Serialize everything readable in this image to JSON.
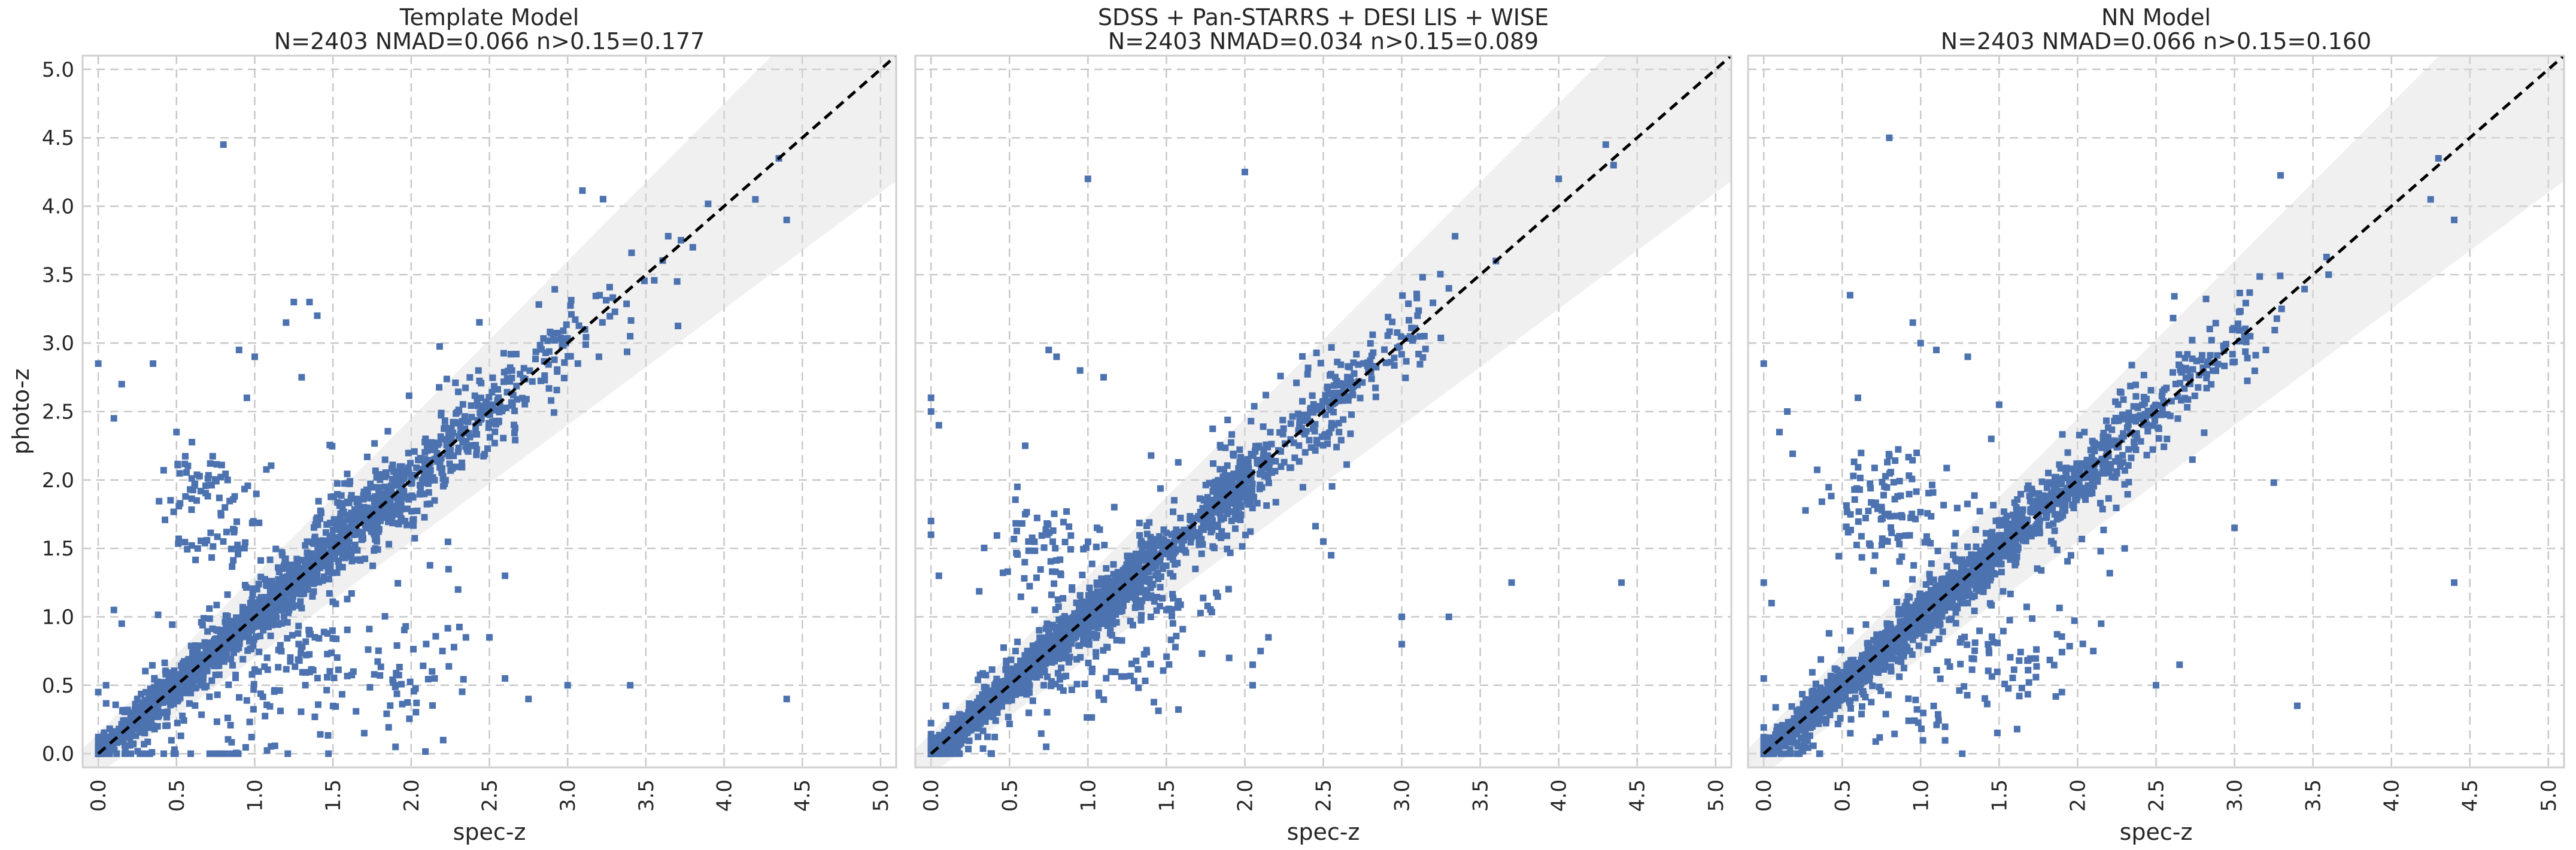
{
  "chart_data": [
    {
      "type": "scatter",
      "title": "Template Model",
      "subtitle": "N=2403 NMAD=0.066 n>0.15=0.177",
      "xlabel": "spec-z",
      "ylabel": "photo-z",
      "xlim": [
        -0.1,
        5.1
      ],
      "ylim": [
        -0.1,
        5.1
      ],
      "xticks": [
        "0.0",
        "0.5",
        "1.0",
        "1.5",
        "2.0",
        "2.5",
        "3.0",
        "3.5",
        "4.0",
        "4.5",
        "5.0"
      ],
      "yticks": [
        "0.0",
        "0.5",
        "1.0",
        "1.5",
        "2.0",
        "2.5",
        "3.0",
        "3.5",
        "4.0",
        "4.5",
        "5.0"
      ],
      "show_yticks": true,
      "grid": true,
      "n_points": 2403,
      "outlier_threshold": 0.15,
      "marker": "square",
      "marker_color": "#4c72b0",
      "band_color": "#dcdcdc",
      "line_color": "#000000",
      "outliers": [
        {
          "x": 0.8,
          "y": 4.45
        },
        {
          "x": 4.4,
          "y": 0.4
        },
        {
          "x": 3.4,
          "y": 0.5
        },
        {
          "x": 3.0,
          "y": 0.5
        },
        {
          "x": 0.0,
          "y": 2.85
        },
        {
          "x": 0.35,
          "y": 2.85
        },
        {
          "x": 1.25,
          "y": 3.3
        },
        {
          "x": 1.35,
          "y": 3.3
        },
        {
          "x": 1.4,
          "y": 3.2
        },
        {
          "x": 1.2,
          "y": 3.15
        },
        {
          "x": 0.15,
          "y": 2.7
        },
        {
          "x": 0.1,
          "y": 2.45
        },
        {
          "x": 0.9,
          "y": 2.95
        },
        {
          "x": 1.0,
          "y": 2.9
        },
        {
          "x": 0.95,
          "y": 2.6
        },
        {
          "x": 1.3,
          "y": 2.75
        },
        {
          "x": 0.5,
          "y": 2.35
        },
        {
          "x": 0.1,
          "y": 1.05
        },
        {
          "x": 0.15,
          "y": 0.95
        },
        {
          "x": 0.05,
          "y": 0.5
        },
        {
          "x": 0.0,
          "y": 0.45
        },
        {
          "x": 2.2,
          "y": 0.75
        },
        {
          "x": 2.35,
          "y": 0.85
        },
        {
          "x": 2.5,
          "y": 0.85
        },
        {
          "x": 2.15,
          "y": 0.55
        },
        {
          "x": 2.6,
          "y": 0.55
        },
        {
          "x": 2.75,
          "y": 0.4
        },
        {
          "x": 1.7,
          "y": 0.15
        },
        {
          "x": 1.9,
          "y": 0.05
        },
        {
          "x": 3.2,
          "y": 2.9
        },
        {
          "x": 4.2,
          "y": 4.05
        },
        {
          "x": 4.4,
          "y": 3.9
        },
        {
          "x": 4.35,
          "y": 4.35
        },
        {
          "x": 3.8,
          "y": 3.7
        },
        {
          "x": 3.7,
          "y": 3.45
        },
        {
          "x": 3.4,
          "y": 3.05
        },
        {
          "x": 2.6,
          "y": 1.3
        },
        {
          "x": 2.3,
          "y": 1.2
        },
        {
          "x": 1.9,
          "y": 0.5
        }
      ],
      "clusters": [
        {
          "x": 0.35,
          "y": 0.35,
          "spread": 0.15,
          "count": 520,
          "kind": "diagonal"
        },
        {
          "x": 0.85,
          "y": 0.85,
          "spread": 0.2,
          "count": 600,
          "kind": "diagonal"
        },
        {
          "x": 1.35,
          "y": 1.3,
          "spread": 0.2,
          "count": 420,
          "kind": "diagonal"
        },
        {
          "x": 2.05,
          "y": 2.0,
          "spread": 0.25,
          "count": 380,
          "kind": "diagonal"
        },
        {
          "x": 2.75,
          "y": 2.75,
          "spread": 0.25,
          "count": 120,
          "kind": "diagonal"
        },
        {
          "x": 1.7,
          "y": 1.75,
          "spread": 0.15,
          "count": 120,
          "kind": "blob"
        },
        {
          "x": 0.7,
          "y": 2.0,
          "spread": 0.18,
          "count": 55,
          "kind": "blob"
        },
        {
          "x": 0.75,
          "y": 1.55,
          "spread": 0.15,
          "count": 35,
          "kind": "blob"
        },
        {
          "x": 1.1,
          "y": 0.35,
          "spread": 0.35,
          "count": 60,
          "kind": "blob"
        },
        {
          "x": 1.85,
          "y": 0.6,
          "spread": 0.25,
          "count": 55,
          "kind": "blob"
        },
        {
          "x": 1.3,
          "y": 0.75,
          "spread": 0.12,
          "count": 30,
          "kind": "blob"
        },
        {
          "x": 0.35,
          "y": 0.05,
          "spread": 0.25,
          "count": 45,
          "kind": "blob"
        }
      ]
    },
    {
      "type": "scatter",
      "title": "SDSS + Pan-STARRS + DESI LIS + WISE",
      "subtitle": "N=2403 NMAD=0.034 n>0.15=0.089",
      "xlabel": "spec-z",
      "ylabel": "",
      "xlim": [
        -0.1,
        5.1
      ],
      "ylim": [
        -0.1,
        5.1
      ],
      "xticks": [
        "0.0",
        "0.5",
        "1.0",
        "1.5",
        "2.0",
        "2.5",
        "3.0",
        "3.5",
        "4.0",
        "4.5",
        "5.0"
      ],
      "yticks": [],
      "show_yticks": false,
      "grid": true,
      "n_points": 2403,
      "outlier_threshold": 0.15,
      "marker": "square",
      "marker_color": "#4c72b0",
      "band_color": "#dcdcdc",
      "line_color": "#000000",
      "outliers": [
        {
          "x": 1.0,
          "y": 4.2
        },
        {
          "x": 2.0,
          "y": 4.25
        },
        {
          "x": 3.7,
          "y": 1.25
        },
        {
          "x": 4.4,
          "y": 1.25
        },
        {
          "x": 0.0,
          "y": 2.6
        },
        {
          "x": 0.0,
          "y": 2.5
        },
        {
          "x": 0.05,
          "y": 2.4
        },
        {
          "x": 0.0,
          "y": 1.7
        },
        {
          "x": 0.0,
          "y": 1.6
        },
        {
          "x": 0.05,
          "y": 1.3
        },
        {
          "x": 0.75,
          "y": 2.95
        },
        {
          "x": 0.8,
          "y": 2.9
        },
        {
          "x": 0.95,
          "y": 2.8
        },
        {
          "x": 1.1,
          "y": 2.75
        },
        {
          "x": 0.6,
          "y": 2.25
        },
        {
          "x": 0.55,
          "y": 1.95
        },
        {
          "x": 0.6,
          "y": 1.75
        },
        {
          "x": 2.5,
          "y": 1.55
        },
        {
          "x": 2.55,
          "y": 1.45
        },
        {
          "x": 3.0,
          "y": 1.0
        },
        {
          "x": 3.0,
          "y": 0.8
        },
        {
          "x": 3.3,
          "y": 1.0
        },
        {
          "x": 2.1,
          "y": 0.75
        },
        {
          "x": 2.05,
          "y": 0.65
        },
        {
          "x": 2.15,
          "y": 0.85
        },
        {
          "x": 1.9,
          "y": 0.7
        },
        {
          "x": 2.05,
          "y": 0.5
        },
        {
          "x": 4.35,
          "y": 4.3
        },
        {
          "x": 4.3,
          "y": 4.45
        },
        {
          "x": 4.0,
          "y": 4.2
        },
        {
          "x": 3.6,
          "y": 3.6
        },
        {
          "x": 3.3,
          "y": 3.4
        },
        {
          "x": 3.1,
          "y": 3.2
        },
        {
          "x": 2.6,
          "y": 2.35
        },
        {
          "x": 1.4,
          "y": 1.0
        },
        {
          "x": 1.5,
          "y": 1.05
        }
      ],
      "clusters": [
        {
          "x": 0.3,
          "y": 0.3,
          "spread": 0.12,
          "count": 560,
          "kind": "diagonal"
        },
        {
          "x": 0.8,
          "y": 0.8,
          "spread": 0.12,
          "count": 620,
          "kind": "diagonal"
        },
        {
          "x": 1.25,
          "y": 1.25,
          "spread": 0.1,
          "count": 420,
          "kind": "diagonal"
        },
        {
          "x": 1.9,
          "y": 1.9,
          "spread": 0.1,
          "count": 360,
          "kind": "diagonal"
        },
        {
          "x": 2.55,
          "y": 2.55,
          "spread": 0.1,
          "count": 150,
          "kind": "diagonal"
        },
        {
          "x": 3.0,
          "y": 3.0,
          "spread": 0.1,
          "count": 40,
          "kind": "diagonal"
        },
        {
          "x": 0.7,
          "y": 1.5,
          "spread": 0.2,
          "count": 50,
          "kind": "blob"
        },
        {
          "x": 1.2,
          "y": 0.55,
          "spread": 0.25,
          "count": 45,
          "kind": "blob"
        },
        {
          "x": 1.55,
          "y": 1.1,
          "spread": 0.12,
          "count": 30,
          "kind": "blob"
        },
        {
          "x": 0.05,
          "y": 0.05,
          "spread": 0.08,
          "count": 60,
          "kind": "blob"
        }
      ]
    },
    {
      "type": "scatter",
      "title": "NN Model",
      "subtitle": "N=2403 NMAD=0.066 n>0.15=0.160",
      "xlabel": "spec-z",
      "ylabel": "",
      "xlim": [
        -0.1,
        5.1
      ],
      "ylim": [
        -0.1,
        5.1
      ],
      "xticks": [
        "0.0",
        "0.5",
        "1.0",
        "1.5",
        "2.0",
        "2.5",
        "3.0",
        "3.5",
        "4.0",
        "4.5",
        "5.0"
      ],
      "yticks": [],
      "show_yticks": false,
      "grid": true,
      "n_points": 2403,
      "outlier_threshold": 0.15,
      "marker": "square",
      "marker_color": "#4c72b0",
      "band_color": "#dcdcdc",
      "line_color": "#000000",
      "outliers": [
        {
          "x": 0.8,
          "y": 4.5
        },
        {
          "x": 4.4,
          "y": 1.25
        },
        {
          "x": 3.4,
          "y": 0.35
        },
        {
          "x": 3.0,
          "y": 1.65
        },
        {
          "x": 0.0,
          "y": 2.85
        },
        {
          "x": 0.55,
          "y": 3.35
        },
        {
          "x": 0.95,
          "y": 3.15
        },
        {
          "x": 1.0,
          "y": 3.0
        },
        {
          "x": 1.1,
          "y": 2.95
        },
        {
          "x": 1.3,
          "y": 2.9
        },
        {
          "x": 0.6,
          "y": 2.6
        },
        {
          "x": 0.15,
          "y": 2.5
        },
        {
          "x": 0.1,
          "y": 2.35
        },
        {
          "x": 1.5,
          "y": 2.55
        },
        {
          "x": 1.45,
          "y": 2.3
        },
        {
          "x": 0.0,
          "y": 1.25
        },
        {
          "x": 0.05,
          "y": 1.1
        },
        {
          "x": 0.0,
          "y": 0.55
        },
        {
          "x": 2.3,
          "y": 1.5
        },
        {
          "x": 2.15,
          "y": 0.95
        },
        {
          "x": 2.1,
          "y": 0.75
        },
        {
          "x": 2.65,
          "y": 0.65
        },
        {
          "x": 2.5,
          "y": 0.5
        },
        {
          "x": 1.9,
          "y": 0.45
        },
        {
          "x": 4.25,
          "y": 4.05
        },
        {
          "x": 4.4,
          "y": 3.9
        },
        {
          "x": 4.3,
          "y": 4.35
        },
        {
          "x": 3.6,
          "y": 3.5
        },
        {
          "x": 3.3,
          "y": 3.25
        },
        {
          "x": 3.1,
          "y": 3.05
        },
        {
          "x": 3.2,
          "y": 2.95
        },
        {
          "x": 2.7,
          "y": 2.8
        }
      ],
      "clusters": [
        {
          "x": 0.3,
          "y": 0.3,
          "spread": 0.15,
          "count": 560,
          "kind": "diagonal"
        },
        {
          "x": 0.8,
          "y": 0.8,
          "spread": 0.18,
          "count": 620,
          "kind": "diagonal"
        },
        {
          "x": 1.3,
          "y": 1.25,
          "spread": 0.17,
          "count": 430,
          "kind": "diagonal"
        },
        {
          "x": 1.95,
          "y": 1.95,
          "spread": 0.18,
          "count": 380,
          "kind": "diagonal"
        },
        {
          "x": 2.65,
          "y": 2.65,
          "spread": 0.2,
          "count": 130,
          "kind": "diagonal"
        },
        {
          "x": 0.7,
          "y": 1.95,
          "spread": 0.18,
          "count": 60,
          "kind": "blob"
        },
        {
          "x": 0.8,
          "y": 1.6,
          "spread": 0.15,
          "count": 40,
          "kind": "blob"
        },
        {
          "x": 1.6,
          "y": 0.7,
          "spread": 0.2,
          "count": 45,
          "kind": "blob"
        },
        {
          "x": 1.1,
          "y": 0.35,
          "spread": 0.25,
          "count": 35,
          "kind": "blob"
        },
        {
          "x": 0.1,
          "y": 0.05,
          "spread": 0.12,
          "count": 60,
          "kind": "blob"
        }
      ]
    }
  ]
}
